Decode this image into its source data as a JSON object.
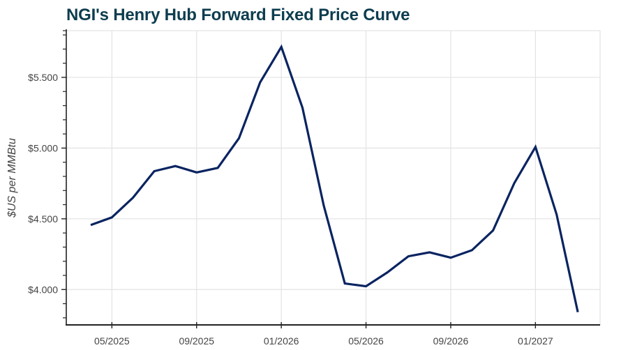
{
  "title": "NGI's Henry Hub Forward Fixed Price Curve",
  "colors": {
    "title": "#0d3d4f",
    "line": "#0a2461",
    "grid": "#e3e3e3",
    "axis": "#222222",
    "tick_text": "#444444"
  },
  "chart_data": {
    "type": "line",
    "title": "NGI's Henry Hub Forward Fixed Price Curve",
    "xlabel": "",
    "ylabel": "$US per MMBtu",
    "x": [
      "04/2025",
      "05/2025",
      "06/2025",
      "07/2025",
      "08/2025",
      "09/2025",
      "10/2025",
      "11/2025",
      "12/2025",
      "01/2026",
      "02/2026",
      "03/2026",
      "04/2026",
      "05/2026",
      "06/2026",
      "07/2026",
      "08/2026",
      "09/2026",
      "10/2026",
      "11/2026",
      "12/2026",
      "01/2027",
      "02/2027",
      "03/2027"
    ],
    "series": [
      {
        "name": "Henry Hub Forward Fixed Price",
        "values": [
          4.456,
          4.51,
          4.65,
          4.837,
          4.873,
          4.828,
          4.86,
          5.07,
          5.465,
          5.715,
          5.285,
          4.595,
          4.043,
          4.023,
          4.12,
          4.235,
          4.263,
          4.225,
          4.278,
          4.418,
          4.752,
          5.008,
          4.53,
          3.84
        ]
      }
    ],
    "ylim": [
      3.75,
      5.83
    ],
    "yticks": [
      4.0,
      4.5,
      5.0,
      5.5
    ],
    "ytick_labels": [
      "$4.000",
      "$4.500",
      "$5.000",
      "$5.500"
    ],
    "xticks": [
      "05/2025",
      "09/2025",
      "01/2026",
      "05/2026",
      "09/2026",
      "01/2027"
    ],
    "grid": true,
    "legend": null
  }
}
